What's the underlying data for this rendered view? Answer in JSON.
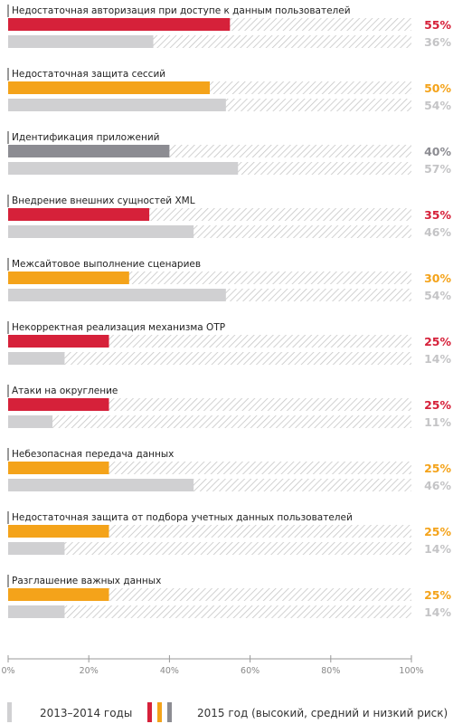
{
  "colors": {
    "high": "#d6213a",
    "medium": "#f4a31a",
    "low": "#8c8c92",
    "prev": "#d0d0d2",
    "hatch": "#c8c8c8",
    "pct_prev": "#c4c4c6"
  },
  "legend": {
    "prev_label": "2013–2014 годы",
    "current_label": "2015 год (высокий, средний и низкий риск)"
  },
  "chart_data": {
    "type": "bar",
    "orientation": "horizontal",
    "xlim": [
      0,
      100
    ],
    "xticks": [
      "0%",
      "20%",
      "40%",
      "60%",
      "80%",
      "100%"
    ],
    "xlabel": "",
    "ylabel": "",
    "grid": false,
    "legend_position": "bottom",
    "series": [
      {
        "name": "2015 год (высокий, средний и низкий риск)",
        "values": [
          55,
          50,
          40,
          35,
          30,
          25,
          25,
          25,
          25,
          25
        ]
      },
      {
        "name": "2013–2014 годы",
        "values": [
          36,
          54,
          57,
          46,
          54,
          14,
          11,
          46,
          14,
          14
        ]
      }
    ],
    "categories": [
      {
        "label": "Недостаточная авторизация при доступе к данным пользователей",
        "current": 55,
        "current_text": "55%",
        "risk": "high",
        "prev": 36,
        "prev_text": "36%"
      },
      {
        "label": "Недостаточная защита сессий",
        "current": 50,
        "current_text": "50%",
        "risk": "medium",
        "prev": 54,
        "prev_text": "54%"
      },
      {
        "label": "Идентификация приложений",
        "current": 40,
        "current_text": "40%",
        "risk": "low",
        "prev": 57,
        "prev_text": "57%"
      },
      {
        "label": "Внедрение внешних сущностей XML",
        "current": 35,
        "current_text": "35%",
        "risk": "high",
        "prev": 46,
        "prev_text": "46%"
      },
      {
        "label": "Межсайтовое выполнение сценариев",
        "current": 30,
        "current_text": "30%",
        "risk": "medium",
        "prev": 54,
        "prev_text": "54%"
      },
      {
        "label": "Некорректная реализация механизма OTP",
        "current": 25,
        "current_text": "25%",
        "risk": "high",
        "prev": 14,
        "prev_text": "14%"
      },
      {
        "label": "Атаки на округление",
        "current": 25,
        "current_text": "25%",
        "risk": "high",
        "prev": 11,
        "prev_text": "11%"
      },
      {
        "label": "Небезопасная передача данных",
        "current": 25,
        "current_text": "25%",
        "risk": "medium",
        "prev": 46,
        "prev_text": "46%"
      },
      {
        "label": "Недостаточная защита от подбора учетных данных пользователей",
        "current": 25,
        "current_text": "25%",
        "risk": "medium",
        "prev": 14,
        "prev_text": "14%"
      },
      {
        "label": "Разглашение важных данных",
        "current": 25,
        "current_text": "25%",
        "risk": "medium",
        "prev": 14,
        "prev_text": "14%"
      }
    ]
  }
}
